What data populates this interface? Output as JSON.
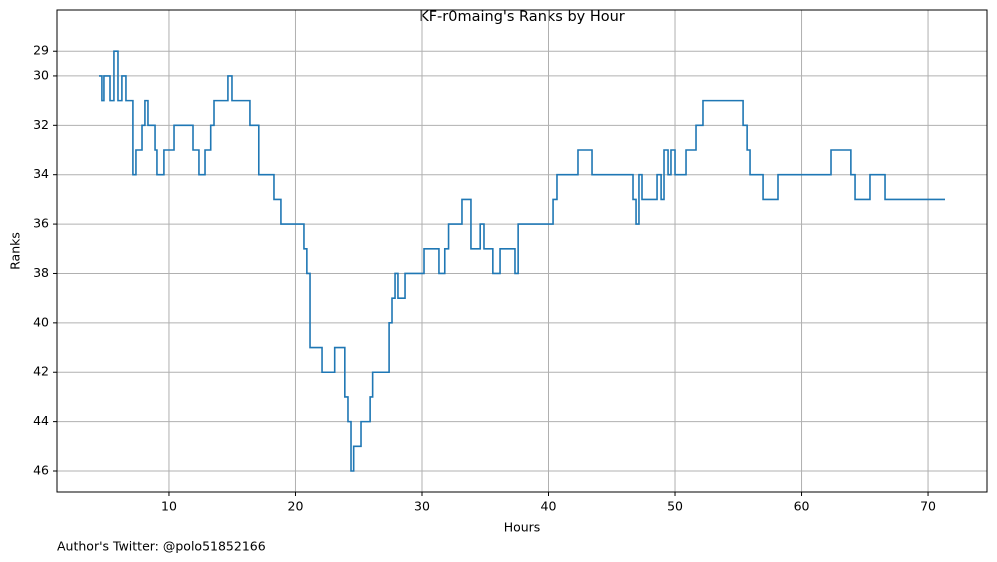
{
  "chart_data": {
    "type": "step",
    "title": "KF-r0maing's Ranks by Hour",
    "xlabel": "Hours",
    "ylabel": "Ranks",
    "footnote": "Author's Twitter: @polo51852166",
    "grid": true,
    "color": "#1f77b4",
    "xlim": [
      1.15,
      74.66
    ],
    "ylim": [
      46.85,
      27.33
    ],
    "xticks": [
      10,
      20,
      30,
      40,
      50,
      60,
      70
    ],
    "yticks": [
      29,
      30,
      32,
      34,
      36,
      38,
      40,
      42,
      44,
      46
    ],
    "x": [
      4.47,
      4.7,
      4.86,
      5.34,
      5.65,
      5.97,
      6.28,
      6.6,
      7.15,
      7.39,
      7.87,
      8.1,
      8.34,
      8.9,
      9.05,
      9.6,
      10.4,
      11.9,
      12.37,
      12.85,
      13.3,
      13.56,
      14.66,
      14.98,
      16.4,
      17.1,
      18.3,
      18.85,
      20.67,
      20.9,
      21.15,
      22.1,
      23.1,
      23.9,
      24.15,
      24.39,
      24.6,
      25.18,
      25.9,
      26.1,
      27.4,
      27.63,
      27.87,
      28.1,
      28.66,
      30.16,
      31.34,
      31.8,
      32.1,
      33.16,
      33.87,
      34.6,
      34.9,
      35.6,
      36.17,
      37.35,
      37.6,
      40.36,
      40.67,
      42.33,
      43.44,
      46.68,
      46.92,
      47.15,
      47.39,
      48.58,
      48.9,
      49.13,
      49.45,
      49.68,
      50,
      50.87,
      51.66,
      52.21,
      55.38,
      55.7,
      55.93,
      56.96,
      58.14,
      62.33,
      63.9,
      64.23,
      65.41,
      66.6,
      71.34
    ],
    "values": [
      30,
      31,
      30,
      31,
      29,
      31,
      30,
      31,
      34,
      33,
      32,
      31,
      32,
      33,
      34,
      33,
      32,
      33,
      34,
      33,
      32,
      31,
      30,
      31,
      32,
      34,
      35,
      36,
      37,
      38,
      41,
      42,
      41,
      43,
      44,
      46,
      45,
      44,
      43,
      42,
      40,
      39,
      38,
      39,
      38,
      37,
      38,
      37,
      36,
      35,
      37,
      36,
      37,
      38,
      37,
      38,
      36,
      35,
      34,
      33,
      34,
      35,
      36,
      34,
      35,
      34,
      35,
      33,
      34,
      33,
      34,
      33,
      32,
      31,
      32,
      33,
      34,
      35,
      34,
      33,
      34,
      35,
      34,
      35,
      35
    ]
  }
}
